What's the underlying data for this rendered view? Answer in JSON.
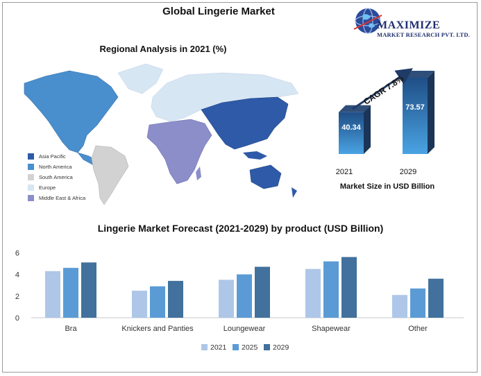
{
  "title": "Global Lingerie Market",
  "logo": {
    "word": "MAXIMIZE",
    "sub": "MARKET RESEARCH PVT. LTD."
  },
  "map": {
    "title": "Regional Analysis in 2021 (%)",
    "legend": [
      {
        "label": "Asia Pacific",
        "color": "#2e5aa8"
      },
      {
        "label": "North America",
        "color": "#4a8fcd"
      },
      {
        "label": "South America",
        "color": "#d2d2d2"
      },
      {
        "label": "Europe",
        "color": "#d7e6f3"
      },
      {
        "label": "Middle East & Africa",
        "color": "#8c8ec9"
      }
    ]
  },
  "market_size": {
    "cagr_label": "CAGR 7.8%",
    "caption": "Market Size in USD Billion",
    "color_top": "#1f4e86",
    "color_bottom": "#4aa3e3"
  },
  "chart_data": [
    {
      "type": "bar",
      "title": "Market Size in USD Billion",
      "categories": [
        "2021",
        "2029"
      ],
      "values": [
        40.34,
        73.57
      ],
      "data_labels": [
        "40.34",
        "73.57"
      ]
    },
    {
      "type": "bar",
      "title": "Lingerie Market Forecast (2021-2029) by product (USD Billion)",
      "categories": [
        "Bra",
        "Knickers and Panties",
        "Loungewear",
        "Shapewear",
        "Other"
      ],
      "series": [
        {
          "name": "2021",
          "values": [
            4.3,
            2.5,
            3.5,
            4.5,
            2.1
          ],
          "color": "#aec7e8"
        },
        {
          "name": "2025",
          "values": [
            4.6,
            2.9,
            4.0,
            5.2,
            2.7
          ],
          "color": "#5b9bd5"
        },
        {
          "name": "2029",
          "values": [
            5.1,
            3.4,
            4.7,
            5.6,
            3.6
          ],
          "color": "#41719c"
        }
      ],
      "yticks": [
        "0",
        "2",
        "4",
        "6"
      ],
      "ylim": [
        0,
        6.4
      ],
      "grid": false,
      "legend_position": "bottom"
    }
  ]
}
